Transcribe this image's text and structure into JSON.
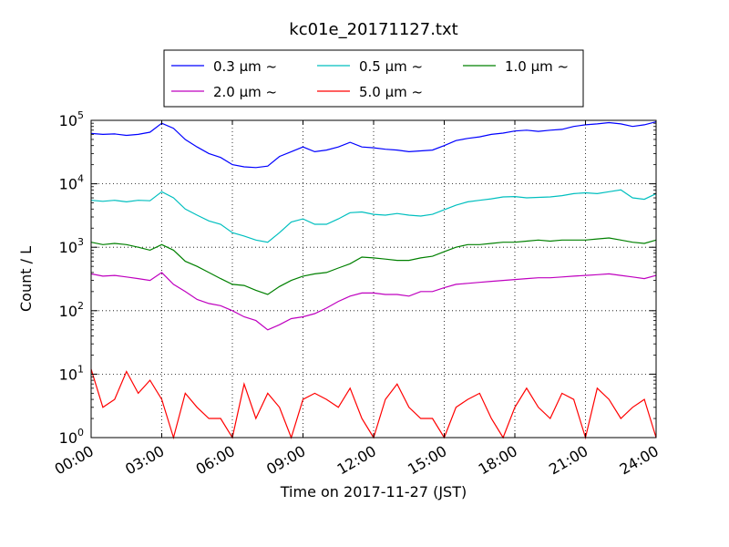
{
  "chart_data": {
    "type": "line",
    "title": "kc01e_20171127.txt",
    "xlabel": "Time on 2017-11-27 (JST)",
    "ylabel": "Count / L",
    "yscale": "log",
    "ylim": [
      1,
      100000
    ],
    "xlim": [
      "00:00",
      "24:00"
    ],
    "grid": true,
    "legend_position": "top-center",
    "x_ticks": [
      "00:00",
      "03:00",
      "06:00",
      "09:00",
      "12:00",
      "15:00",
      "18:00",
      "21:00",
      "24:00"
    ],
    "y_ticks": [
      {
        "value": 1,
        "base": "10",
        "exp": "0"
      },
      {
        "value": 10,
        "base": "10",
        "exp": "1"
      },
      {
        "value": 100,
        "base": "10",
        "exp": "2"
      },
      {
        "value": 1000,
        "base": "10",
        "exp": "3"
      },
      {
        "value": 10000,
        "base": "10",
        "exp": "4"
      },
      {
        "value": 100000,
        "base": "10",
        "exp": "5"
      }
    ],
    "series": [
      {
        "name": "0.3 μm ~",
        "color": "#0000ff",
        "x": [
          "00:00",
          "00:30",
          "01:00",
          "01:30",
          "02:00",
          "02:30",
          "03:00",
          "03:30",
          "04:00",
          "04:30",
          "05:00",
          "05:30",
          "06:00",
          "06:30",
          "07:00",
          "07:30",
          "08:00",
          "08:30",
          "09:00",
          "09:30",
          "10:00",
          "10:30",
          "11:00",
          "11:30",
          "12:00",
          "12:30",
          "13:00",
          "13:30",
          "14:00",
          "14:30",
          "15:00",
          "15:30",
          "16:00",
          "16:30",
          "17:00",
          "17:30",
          "18:00",
          "18:30",
          "19:00",
          "19:30",
          "20:00",
          "20:30",
          "21:00",
          "21:30",
          "22:00",
          "22:30",
          "23:00",
          "23:30",
          "24:00"
        ],
        "values": [
          62000,
          60000,
          61000,
          58000,
          60000,
          65000,
          90000,
          75000,
          50000,
          38000,
          30000,
          26000,
          20000,
          18500,
          18000,
          19000,
          27000,
          32000,
          38000,
          32000,
          34000,
          38000,
          45000,
          38000,
          37000,
          35000,
          34000,
          32000,
          33000,
          34000,
          40000,
          48000,
          52000,
          55000,
          60000,
          63000,
          68000,
          70000,
          67000,
          70000,
          72000,
          80000,
          85000,
          88000,
          92000,
          88000,
          80000,
          85000,
          95000
        ]
      },
      {
        "name": "0.5 μm ~",
        "color": "#00bfbf",
        "x": [
          "00:00",
          "00:30",
          "01:00",
          "01:30",
          "02:00",
          "02:30",
          "03:00",
          "03:30",
          "04:00",
          "04:30",
          "05:00",
          "05:30",
          "06:00",
          "06:30",
          "07:00",
          "07:30",
          "08:00",
          "08:30",
          "09:00",
          "09:30",
          "10:00",
          "10:30",
          "11:00",
          "11:30",
          "12:00",
          "12:30",
          "13:00",
          "13:30",
          "14:00",
          "14:30",
          "15:00",
          "15:30",
          "16:00",
          "16:30",
          "17:00",
          "17:30",
          "18:00",
          "18:30",
          "19:00",
          "19:30",
          "20:00",
          "20:30",
          "21:00",
          "21:30",
          "22:00",
          "22:30",
          "23:00",
          "23:30",
          "24:00"
        ],
        "values": [
          5500,
          5300,
          5500,
          5200,
          5500,
          5400,
          7500,
          6000,
          4000,
          3200,
          2600,
          2300,
          1700,
          1500,
          1300,
          1200,
          1700,
          2500,
          2800,
          2300,
          2300,
          2800,
          3500,
          3600,
          3300,
          3200,
          3400,
          3200,
          3100,
          3300,
          3900,
          4600,
          5200,
          5500,
          5800,
          6200,
          6300,
          6000,
          6100,
          6200,
          6500,
          7000,
          7200,
          7000,
          7500,
          8000,
          6000,
          5700,
          7000
        ]
      },
      {
        "name": "1.0 μm ~",
        "color": "#008000",
        "x": [
          "00:00",
          "00:30",
          "01:00",
          "01:30",
          "02:00",
          "02:30",
          "03:00",
          "03:30",
          "04:00",
          "04:30",
          "05:00",
          "05:30",
          "06:00",
          "06:30",
          "07:00",
          "07:30",
          "08:00",
          "08:30",
          "09:00",
          "09:30",
          "10:00",
          "10:30",
          "11:00",
          "11:30",
          "12:00",
          "12:30",
          "13:00",
          "13:30",
          "14:00",
          "14:30",
          "15:00",
          "15:30",
          "16:00",
          "16:30",
          "17:00",
          "17:30",
          "18:00",
          "18:30",
          "19:00",
          "19:30",
          "20:00",
          "20:30",
          "21:00",
          "21:30",
          "22:00",
          "22:30",
          "23:00",
          "23:30",
          "24:00"
        ],
        "values": [
          1200,
          1100,
          1150,
          1100,
          1000,
          900,
          1100,
          900,
          600,
          500,
          400,
          320,
          260,
          250,
          210,
          180,
          240,
          300,
          350,
          380,
          400,
          470,
          550,
          700,
          680,
          650,
          620,
          620,
          680,
          720,
          850,
          1000,
          1100,
          1100,
          1150,
          1200,
          1200,
          1250,
          1300,
          1250,
          1300,
          1300,
          1300,
          1350,
          1400,
          1300,
          1200,
          1150,
          1300
        ]
      },
      {
        "name": "2.0 μm ~",
        "color": "#bf00bf",
        "x": [
          "00:00",
          "00:30",
          "01:00",
          "01:30",
          "02:00",
          "02:30",
          "03:00",
          "03:30",
          "04:00",
          "04:30",
          "05:00",
          "05:30",
          "06:00",
          "06:30",
          "07:00",
          "07:30",
          "08:00",
          "08:30",
          "09:00",
          "09:30",
          "10:00",
          "10:30",
          "11:00",
          "11:30",
          "12:00",
          "12:30",
          "13:00",
          "13:30",
          "14:00",
          "14:30",
          "15:00",
          "15:30",
          "16:00",
          "16:30",
          "17:00",
          "17:30",
          "18:00",
          "18:30",
          "19:00",
          "19:30",
          "20:00",
          "20:30",
          "21:00",
          "21:30",
          "22:00",
          "22:30",
          "23:00",
          "23:30",
          "24:00"
        ],
        "values": [
          380,
          350,
          360,
          340,
          320,
          300,
          400,
          260,
          200,
          150,
          130,
          120,
          100,
          80,
          70,
          50,
          60,
          75,
          80,
          90,
          110,
          140,
          170,
          190,
          190,
          180,
          180,
          170,
          200,
          200,
          230,
          260,
          270,
          280,
          290,
          300,
          310,
          320,
          330,
          330,
          340,
          350,
          360,
          370,
          380,
          360,
          340,
          320,
          360
        ]
      },
      {
        "name": "5.0 μm ~",
        "color": "#ff0000",
        "x": [
          "00:00",
          "00:30",
          "01:00",
          "01:30",
          "02:00",
          "02:30",
          "03:00",
          "03:30",
          "04:00",
          "04:30",
          "05:00",
          "05:30",
          "06:00",
          "06:30",
          "07:00",
          "07:30",
          "08:00",
          "08:30",
          "09:00",
          "09:30",
          "10:00",
          "10:30",
          "11:00",
          "11:30",
          "12:00",
          "12:30",
          "13:00",
          "13:30",
          "14:00",
          "14:30",
          "15:00",
          "15:30",
          "16:00",
          "16:30",
          "17:00",
          "17:30",
          "18:00",
          "18:30",
          "19:00",
          "19:30",
          "20:00",
          "20:30",
          "21:00",
          "21:30",
          "22:00",
          "22:30",
          "23:00",
          "23:30",
          "24:00"
        ],
        "values": [
          12,
          3,
          4,
          11,
          5,
          8,
          4,
          1,
          5,
          3,
          2,
          2,
          1,
          7,
          2,
          5,
          3,
          1,
          4,
          5,
          4,
          3,
          6,
          2,
          1,
          4,
          7,
          3,
          2,
          2,
          1,
          3,
          4,
          5,
          2,
          1,
          3,
          6,
          3,
          2,
          5,
          4,
          1,
          6,
          4,
          2,
          3,
          4,
          1
        ]
      }
    ]
  }
}
